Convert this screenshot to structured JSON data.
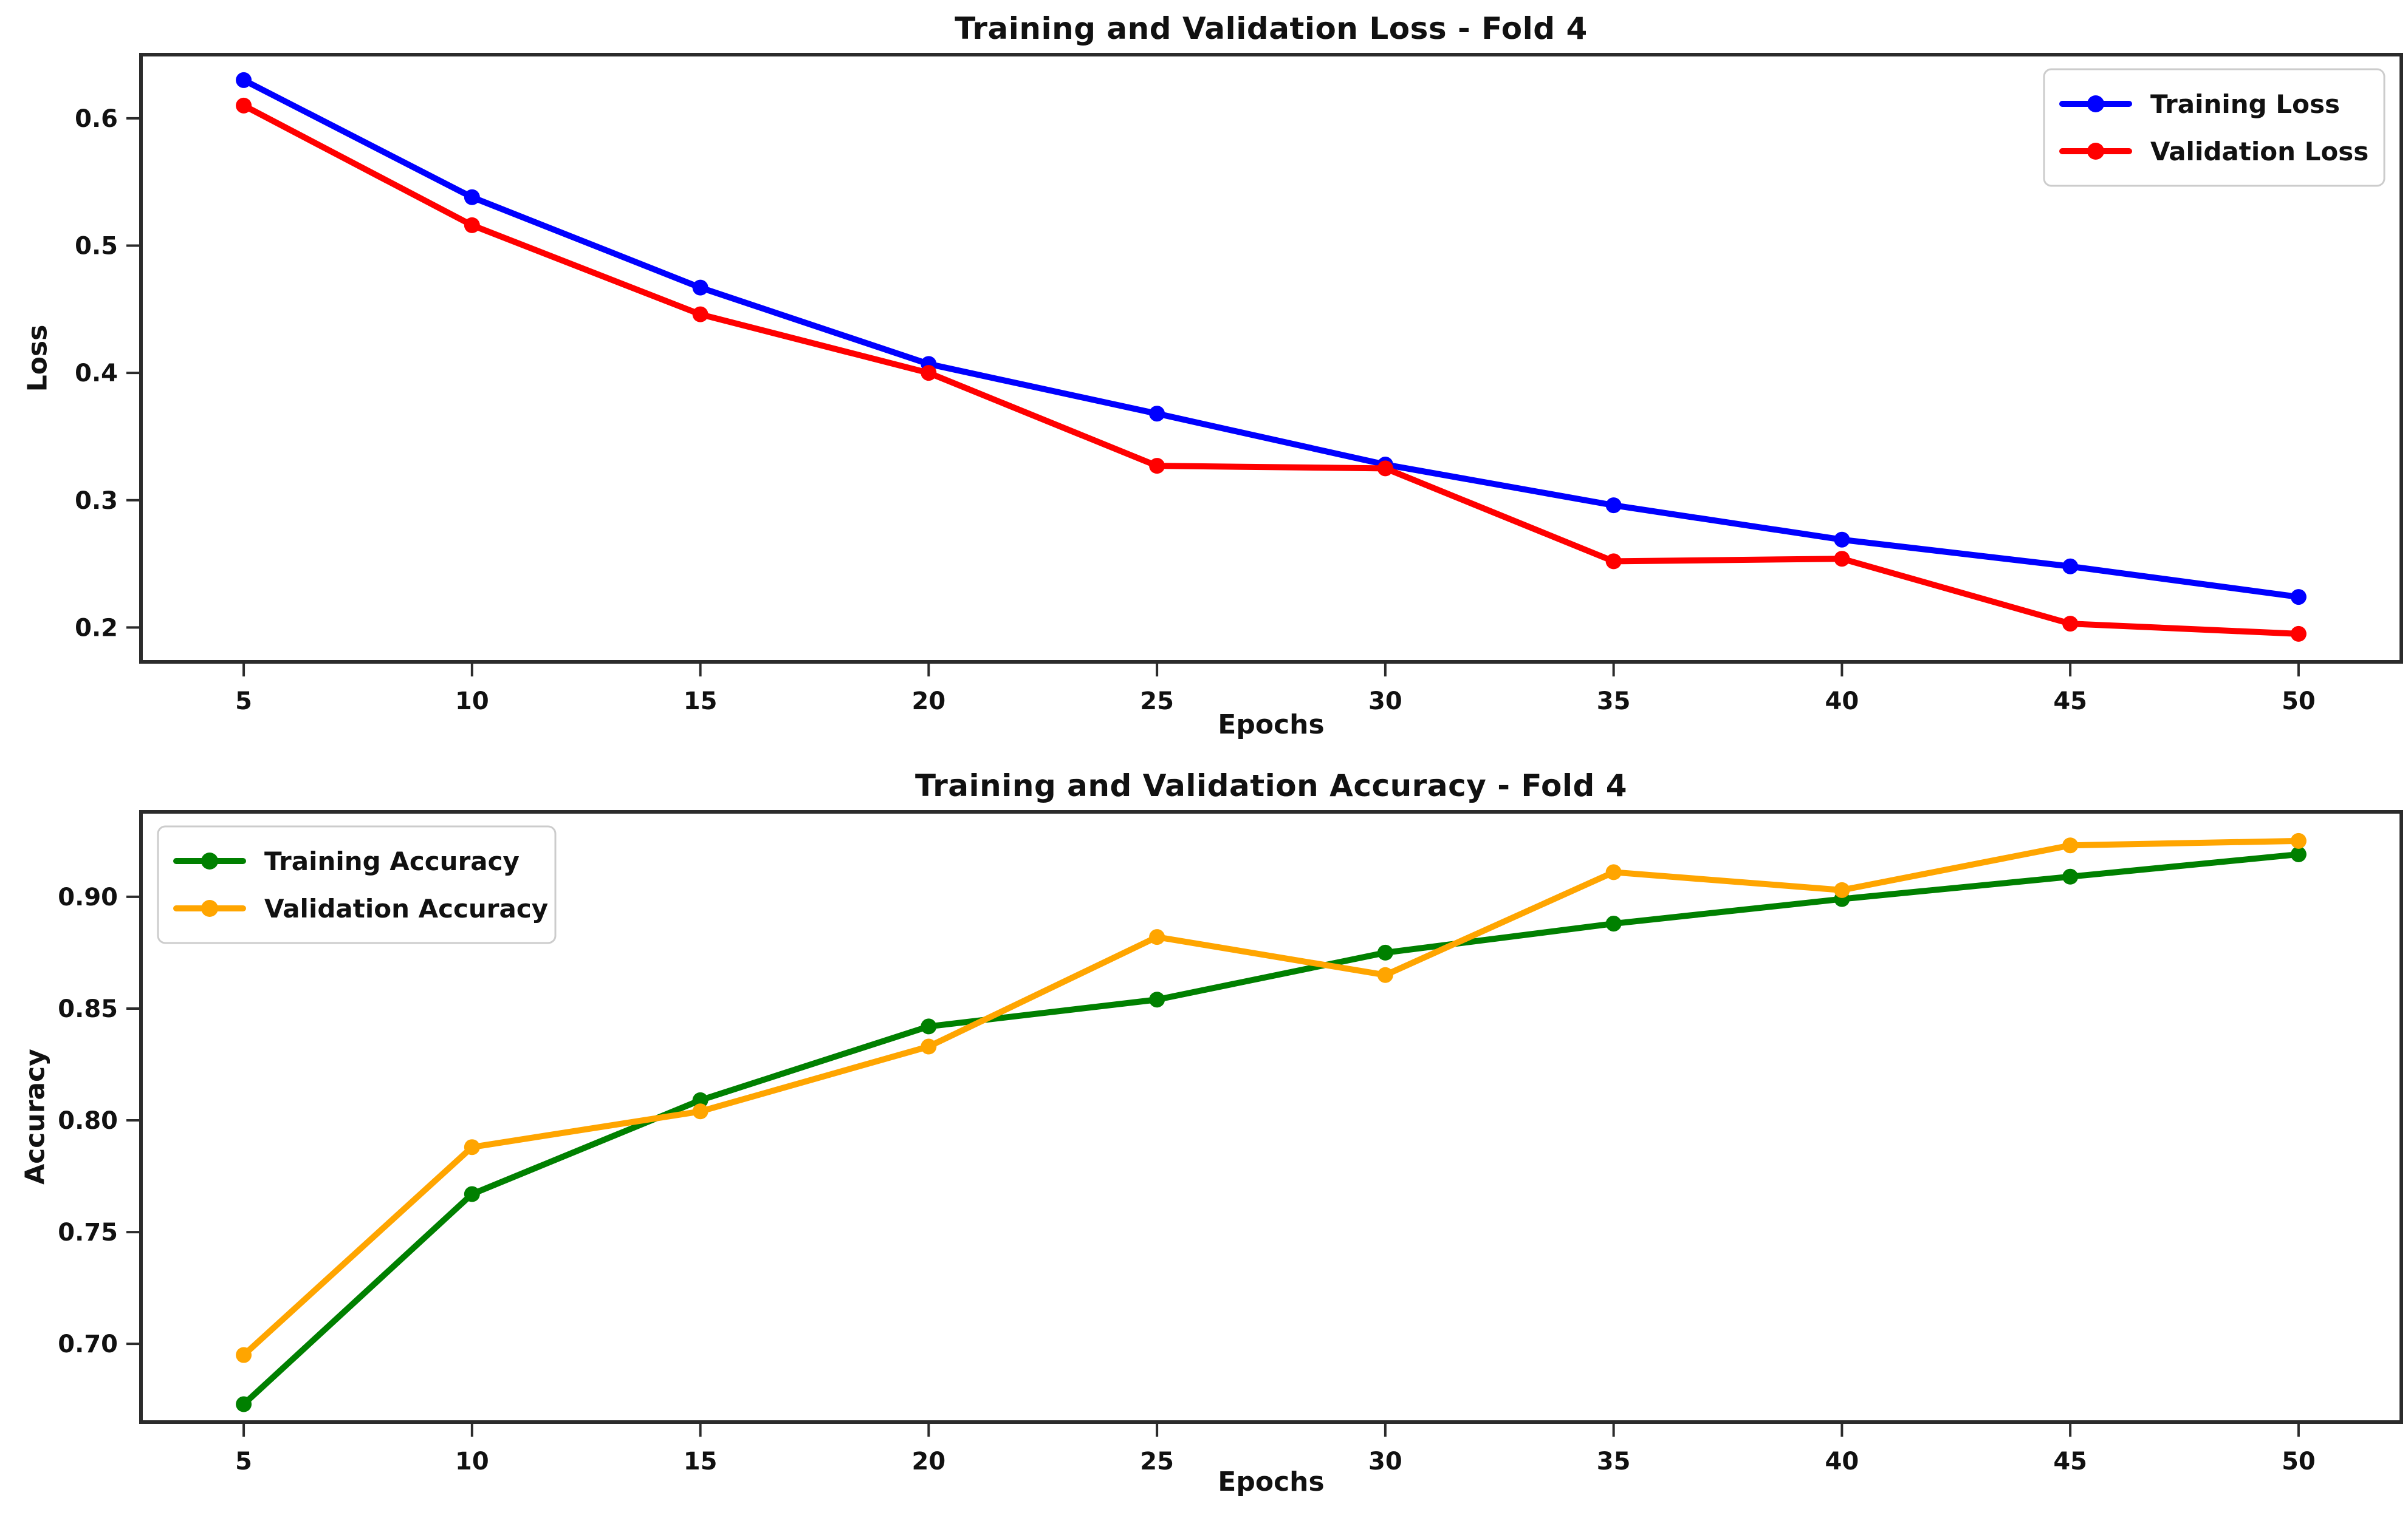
{
  "figure": {
    "background": "#ffffff",
    "axis_color": "#2b2b2b",
    "text_color": "#111111",
    "legend_border_color": "#cccccc"
  },
  "chart_data": [
    {
      "type": "line",
      "title": "Training and Validation Loss - Fold 4",
      "xlabel": "Epochs",
      "ylabel": "Loss",
      "grid": false,
      "legend_position": "top-right",
      "x": [
        5,
        10,
        15,
        20,
        25,
        30,
        35,
        40,
        45,
        50
      ],
      "xtick_labels": [
        "5",
        "10",
        "15",
        "20",
        "25",
        "30",
        "35",
        "40",
        "45",
        "50"
      ],
      "yticks": [
        0.2,
        0.3,
        0.4,
        0.5,
        0.6
      ],
      "ytick_labels": [
        "0.2",
        "0.3",
        "0.4",
        "0.5",
        "0.6"
      ],
      "xlim": [
        2.75,
        52.25
      ],
      "ylim": [
        0.173,
        0.65
      ],
      "series": [
        {
          "name": "Training Loss",
          "color": "#0000ff",
          "values": [
            0.63,
            0.538,
            0.467,
            0.407,
            0.368,
            0.328,
            0.296,
            0.269,
            0.248,
            0.224
          ]
        },
        {
          "name": "Validation Loss",
          "color": "#ff0000",
          "values": [
            0.61,
            0.516,
            0.446,
            0.4,
            0.327,
            0.325,
            0.252,
            0.254,
            0.203,
            0.195
          ]
        }
      ]
    },
    {
      "type": "line",
      "title": "Training and Validation Accuracy - Fold 4",
      "xlabel": "Epochs",
      "ylabel": "Accuracy",
      "grid": false,
      "legend_position": "top-left",
      "x": [
        5,
        10,
        15,
        20,
        25,
        30,
        35,
        40,
        45,
        50
      ],
      "xtick_labels": [
        "5",
        "10",
        "15",
        "20",
        "25",
        "30",
        "35",
        "40",
        "45",
        "50"
      ],
      "yticks": [
        0.7,
        0.75,
        0.8,
        0.85,
        0.9
      ],
      "ytick_labels": [
        "0.70",
        "0.75",
        "0.80",
        "0.85",
        "0.90"
      ],
      "xlim": [
        2.75,
        52.25
      ],
      "ylim": [
        0.665,
        0.938
      ],
      "series": [
        {
          "name": "Training Accuracy",
          "color": "#008000",
          "values": [
            0.673,
            0.767,
            0.809,
            0.842,
            0.854,
            0.875,
            0.888,
            0.899,
            0.909,
            0.919
          ]
        },
        {
          "name": "Validation Accuracy",
          "color": "#ffa500",
          "values": [
            0.695,
            0.788,
            0.804,
            0.833,
            0.882,
            0.865,
            0.911,
            0.903,
            0.923,
            0.925
          ]
        }
      ]
    }
  ]
}
